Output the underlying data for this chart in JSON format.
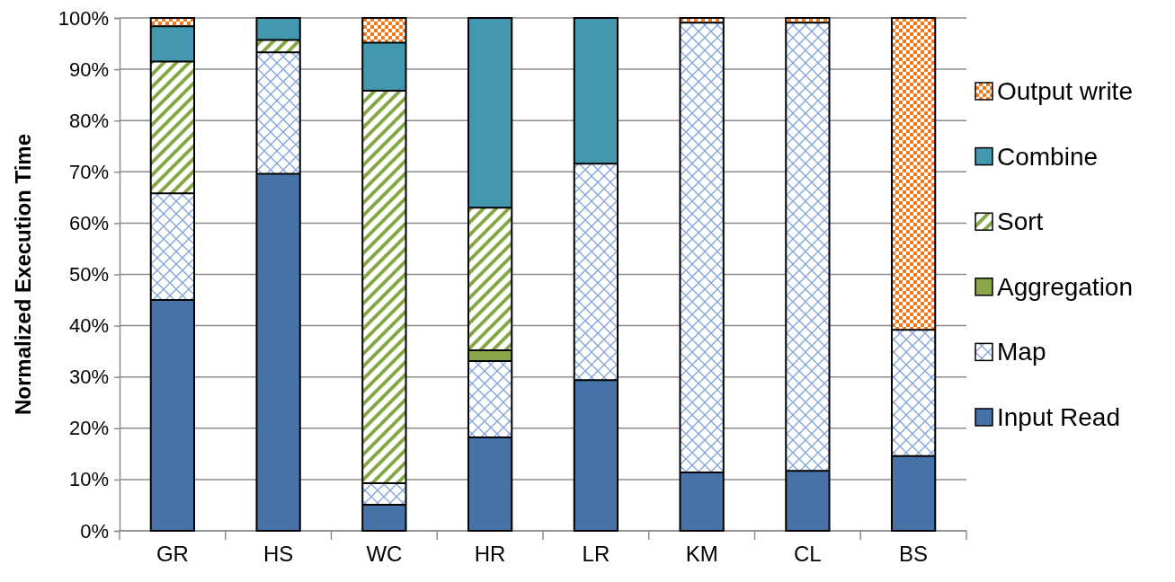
{
  "chart_data": {
    "type": "bar",
    "stacked": true,
    "ylabel": "Normalized Execution Time",
    "categories": [
      "GR",
      "HS",
      "WC",
      "HR",
      "LR",
      "KM",
      "CL",
      "BS"
    ],
    "series": [
      {
        "name": "Input Read",
        "color": "#4672a8",
        "values": [
          45.0,
          69.6,
          5.1,
          18.2,
          29.4,
          11.4,
          11.7,
          14.6
        ]
      },
      {
        "name": "Map",
        "color": "#7ea2da",
        "values": [
          20.8,
          23.7,
          4.2,
          14.9,
          42.2,
          87.7,
          87.4,
          24.6
        ]
      },
      {
        "name": "Aggregation",
        "color": "#8aa54a",
        "values": [
          0,
          0,
          0,
          2.1,
          0,
          0,
          0,
          0
        ]
      },
      {
        "name": "Sort",
        "color": "#86a844",
        "values": [
          25.7,
          2.4,
          76.5,
          27.8,
          0,
          0,
          0,
          0
        ]
      },
      {
        "name": "Combine",
        "color": "#4398b0",
        "values": [
          6.9,
          4.3,
          9.4,
          37.0,
          28.4,
          0,
          0,
          0
        ]
      },
      {
        "name": "Output write",
        "color": "#f07b1e",
        "values": [
          1.6,
          0,
          4.8,
          0,
          0,
          0.9,
          0.9,
          60.8
        ]
      }
    ],
    "ylim": [
      0,
      100
    ],
    "yticks": [
      {
        "value": 0,
        "label": "0%"
      },
      {
        "value": 10,
        "label": "10%"
      },
      {
        "value": 20,
        "label": "20%"
      },
      {
        "value": 30,
        "label": "30%"
      },
      {
        "value": 40,
        "label": "40%"
      },
      {
        "value": 50,
        "label": "50%"
      },
      {
        "value": 60,
        "label": "60%"
      },
      {
        "value": 70,
        "label": "70%"
      },
      {
        "value": 80,
        "label": "80%"
      },
      {
        "value": 90,
        "label": "90%"
      },
      {
        "value": 100,
        "label": "100%"
      }
    ],
    "grid": "y",
    "legend": "right"
  }
}
